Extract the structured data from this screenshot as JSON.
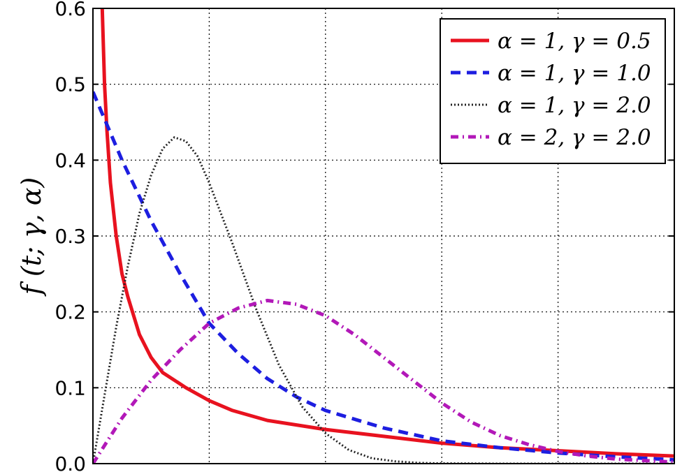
{
  "chart_data": {
    "type": "line",
    "ylabel": "f (t; γ, α)",
    "ylim": [
      0,
      0.6
    ],
    "xlim": [
      0,
      5
    ],
    "y_ticks": [
      "0.0",
      "0.1",
      "0.2",
      "0.3",
      "0.4",
      "0.5",
      "0.6"
    ],
    "x_grid": [
      1,
      2,
      3,
      4
    ],
    "grid": true,
    "legend_placement": "top-right",
    "series": [
      {
        "name": "α = 1,  γ = 0.5",
        "alpha": 1,
        "gamma": 0.5,
        "color": "#e8121f",
        "style": "solid",
        "x": [
          0.08,
          0.1,
          0.12,
          0.15,
          0.2,
          0.25,
          0.3,
          0.4,
          0.5,
          0.6,
          0.8,
          1.0,
          1.2,
          1.5,
          2.0,
          2.5,
          3.0,
          3.5,
          4.0,
          4.5,
          5.0
        ],
        "y": [
          0.6,
          0.5,
          0.44,
          0.37,
          0.3,
          0.25,
          0.22,
          0.17,
          0.14,
          0.12,
          0.1,
          0.083,
          0.07,
          0.057,
          0.045,
          0.036,
          0.027,
          0.021,
          0.017,
          0.013,
          0.01
        ]
      },
      {
        "name": "α = 1,  γ = 1.0",
        "alpha": 1,
        "gamma": 1.0,
        "color": "#1d1ee0",
        "style": "dashed",
        "x": [
          0,
          0.25,
          0.5,
          0.75,
          1.0,
          1.25,
          1.5,
          1.75,
          2.0,
          2.5,
          3.0,
          3.5,
          4.0,
          4.5,
          5.0
        ],
        "y": [
          0.49,
          0.4,
          0.32,
          0.25,
          0.185,
          0.145,
          0.112,
          0.088,
          0.07,
          0.047,
          0.03,
          0.021,
          0.014,
          0.009,
          0.005
        ]
      },
      {
        "name": "α = 1,  γ = 2.0",
        "alpha": 1,
        "gamma": 2.0,
        "color": "#222222",
        "style": "dotted",
        "x": [
          0,
          0.1,
          0.2,
          0.3,
          0.4,
          0.5,
          0.6,
          0.7,
          0.8,
          0.9,
          1.0,
          1.2,
          1.4,
          1.6,
          1.8,
          2.0,
          2.2,
          2.4,
          2.6,
          2.8,
          3.0,
          3.5,
          4.0,
          5.0
        ],
        "y": [
          0,
          0.09,
          0.18,
          0.26,
          0.33,
          0.38,
          0.415,
          0.43,
          0.425,
          0.405,
          0.37,
          0.29,
          0.205,
          0.13,
          0.075,
          0.04,
          0.018,
          0.007,
          0.003,
          0.001,
          0.0004,
          0,
          0,
          0
        ]
      },
      {
        "name": "α = 2,  γ = 2.0",
        "alpha": 2,
        "gamma": 2.0,
        "color": "#b218b8",
        "style": "dashdot",
        "x": [
          0,
          0.25,
          0.5,
          0.75,
          1.0,
          1.25,
          1.5,
          1.75,
          2.0,
          2.25,
          2.5,
          2.75,
          3.0,
          3.25,
          3.5,
          3.75,
          4.0,
          4.25,
          4.5,
          4.75,
          5.0
        ],
        "y": [
          0,
          0.06,
          0.11,
          0.15,
          0.185,
          0.205,
          0.215,
          0.21,
          0.195,
          0.17,
          0.14,
          0.11,
          0.08,
          0.055,
          0.037,
          0.025,
          0.016,
          0.01,
          0.006,
          0.004,
          0.002
        ]
      }
    ]
  }
}
